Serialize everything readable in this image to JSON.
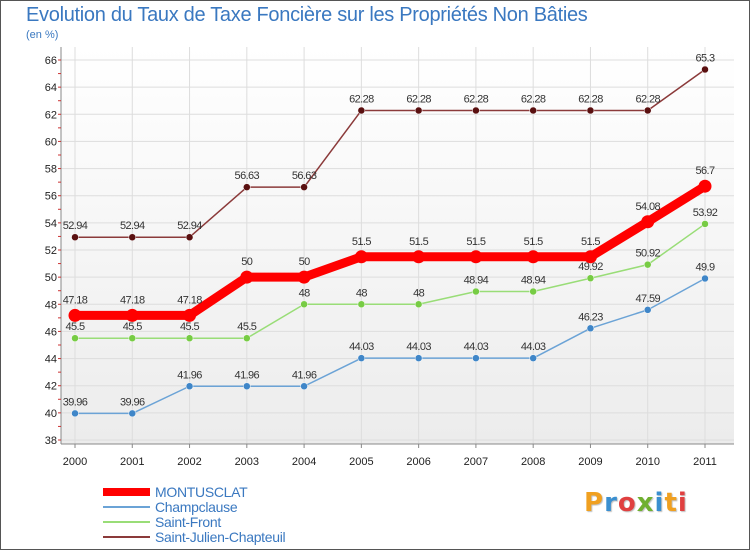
{
  "header": {
    "title": "Evolution du Taux de Taxe Foncière sur les Propriétés Non Bâties",
    "subtitle": "(en %)"
  },
  "brand": {
    "letters": [
      "P",
      "r",
      "o",
      "x",
      "i",
      "t",
      "i"
    ],
    "colors": [
      "#f0a020",
      "#3a8fd0",
      "#e04040",
      "#70b030",
      "#3a8fd0",
      "#f0a020",
      "#e04040"
    ]
  },
  "chart_data": {
    "type": "line",
    "title": "Evolution du Taux de Taxe Foncière sur les Propriétés Non Bâties",
    "ylabel": "(en %)",
    "xlabel": "",
    "x": [
      "2000",
      "2001",
      "2002",
      "2003",
      "2004",
      "2005",
      "2006",
      "2007",
      "2008",
      "2009",
      "2010",
      "2011"
    ],
    "ylim": [
      38,
      66
    ],
    "yticks": [
      38,
      40,
      42,
      44,
      46,
      48,
      50,
      52,
      54,
      56,
      58,
      60,
      62,
      64,
      66
    ],
    "grid": true,
    "legend": "bottom-left",
    "series": [
      {
        "name": "Saint-Julien-Chapteuil",
        "color": "#8b3a3a",
        "dot": "#5a1010",
        "emphasis": false,
        "values": [
          52.94,
          52.94,
          52.94,
          56.63,
          56.63,
          62.28,
          62.28,
          62.28,
          62.28,
          62.28,
          62.28,
          65.3
        ],
        "labels": [
          "52.94",
          "52.94",
          "52.94",
          "56.63",
          "56.63",
          "62.28",
          "62.28",
          "62.28",
          "62.28",
          "62.28",
          "62.28",
          "65.3"
        ]
      },
      {
        "name": "Saint-Front",
        "color": "#99dd77",
        "dot": "#77cc44",
        "emphasis": false,
        "values": [
          45.5,
          45.5,
          45.5,
          45.5,
          48,
          48,
          48,
          48.94,
          48.94,
          49.92,
          50.92,
          53.92
        ],
        "labels": [
          "45.5",
          "45.5",
          "45.5",
          "45.5",
          "48",
          "48",
          "48",
          "48.94",
          "48.94",
          "49.92",
          "50.92",
          "53.92"
        ]
      },
      {
        "name": "Champclause",
        "color": "#6ba3d6",
        "dot": "#3f86c8",
        "emphasis": false,
        "values": [
          39.96,
          39.96,
          41.96,
          41.96,
          41.96,
          44.03,
          44.03,
          44.03,
          44.03,
          46.23,
          47.59,
          49.9
        ],
        "labels": [
          "39.96",
          "39.96",
          "41.96",
          "41.96",
          "41.96",
          "44.03",
          "44.03",
          "44.03",
          "44.03",
          "46.23",
          "47.59",
          "49.9"
        ]
      },
      {
        "name": "MONTUSCLAT",
        "color": "#ff0000",
        "dot": "#ff0000",
        "emphasis": true,
        "values": [
          47.18,
          47.18,
          47.18,
          50,
          50,
          51.5,
          51.5,
          51.5,
          51.5,
          51.5,
          54.08,
          56.7
        ],
        "labels": [
          "47.18",
          "47.18",
          "47.18",
          "50",
          "50",
          "51.5",
          "51.5",
          "51.5",
          "51.5",
          "51.5",
          "54.08",
          "56.7"
        ]
      }
    ],
    "legend_order": [
      "MONTUSCLAT",
      "Champclause",
      "Saint-Front",
      "Saint-Julien-Chapteuil"
    ]
  }
}
